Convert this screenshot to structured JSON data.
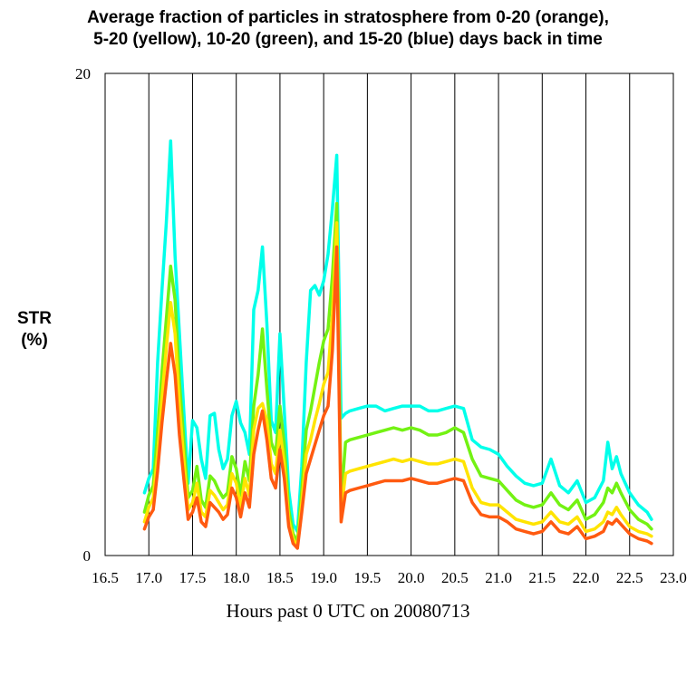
{
  "chart_data": {
    "type": "line",
    "title_lines": [
      "Average fraction of particles in stratosphere from 0-20 (orange),",
      "5-20 (yellow), 10-20 (green), and 15-20 (blue) days back in time"
    ],
    "xlabel": "Hours past 0 UTC on 20080713",
    "ylabel_lines": [
      "STR",
      "(%)"
    ],
    "xlim": [
      16.5,
      23.0
    ],
    "ylim": [
      0,
      20
    ],
    "xticks": [
      "16.5",
      "17.0",
      "17.5",
      "18.0",
      "18.5",
      "19.0",
      "19.5",
      "20.0",
      "20.5",
      "21.0",
      "21.5",
      "22.0",
      "22.5",
      "23.0"
    ],
    "yticks": [
      "0",
      "20"
    ],
    "grid": "vertical",
    "x": [
      16.95,
      17.0,
      17.05,
      17.1,
      17.15,
      17.2,
      17.25,
      17.3,
      17.35,
      17.4,
      17.45,
      17.5,
      17.55,
      17.6,
      17.65,
      17.7,
      17.75,
      17.8,
      17.85,
      17.9,
      17.95,
      18.0,
      18.05,
      18.1,
      18.15,
      18.2,
      18.25,
      18.3,
      18.35,
      18.4,
      18.45,
      18.5,
      18.55,
      18.6,
      18.65,
      18.7,
      18.75,
      18.8,
      18.85,
      18.9,
      18.95,
      19.0,
      19.05,
      19.1,
      19.15,
      19.2,
      19.25,
      19.3,
      19.4,
      19.5,
      19.6,
      19.7,
      19.8,
      19.9,
      20.0,
      20.1,
      20.2,
      20.3,
      20.4,
      20.5,
      20.6,
      20.7,
      20.8,
      20.9,
      21.0,
      21.1,
      21.2,
      21.3,
      21.4,
      21.5,
      21.6,
      21.7,
      21.8,
      21.9,
      22.0,
      22.1,
      22.2,
      22.25,
      22.3,
      22.35,
      22.4,
      22.5,
      22.6,
      22.7,
      22.75
    ],
    "series": [
      {
        "color": "#ff5a10",
        "values": [
          1.1,
          1.6,
          1.9,
          3.5,
          5.5,
          7.2,
          8.8,
          7.5,
          5.0,
          3.2,
          1.5,
          1.8,
          2.4,
          1.4,
          1.2,
          2.2,
          2.0,
          1.8,
          1.5,
          1.7,
          2.8,
          2.4,
          1.6,
          2.6,
          2.0,
          4.2,
          5.2,
          6.0,
          4.8,
          3.2,
          2.8,
          4.4,
          3.2,
          1.2,
          0.5,
          0.3,
          1.8,
          3.4,
          4.0,
          4.6,
          5.2,
          5.8,
          6.2,
          8.5,
          12.8,
          1.4,
          2.6,
          2.7,
          2.8,
          2.9,
          3.0,
          3.1,
          3.1,
          3.1,
          3.2,
          3.1,
          3.0,
          3.0,
          3.1,
          3.2,
          3.1,
          2.2,
          1.7,
          1.6,
          1.6,
          1.4,
          1.1,
          1.0,
          0.9,
          1.0,
          1.4,
          1.0,
          0.9,
          1.2,
          0.7,
          0.8,
          1.0,
          1.4,
          1.3,
          1.5,
          1.3,
          0.9,
          0.7,
          0.6,
          0.5
        ]
      },
      {
        "color": "#ffe400",
        "values": [
          1.4,
          2.0,
          2.4,
          4.2,
          6.5,
          8.6,
          10.5,
          9.2,
          6.2,
          4.0,
          1.9,
          2.2,
          3.0,
          1.8,
          1.6,
          2.7,
          2.5,
          2.2,
          1.9,
          2.1,
          3.4,
          3.0,
          2.0,
          3.2,
          2.5,
          5.2,
          6.1,
          6.3,
          5.6,
          3.8,
          3.4,
          5.2,
          3.8,
          1.5,
          0.7,
          0.4,
          2.2,
          4.2,
          4.8,
          5.6,
          6.3,
          7.1,
          7.6,
          10.0,
          13.8,
          1.8,
          3.4,
          3.5,
          3.6,
          3.7,
          3.8,
          3.9,
          4.0,
          3.9,
          4.0,
          3.9,
          3.8,
          3.8,
          3.9,
          4.0,
          3.9,
          2.8,
          2.2,
          2.1,
          2.1,
          1.8,
          1.5,
          1.4,
          1.3,
          1.4,
          1.8,
          1.4,
          1.3,
          1.6,
          1.0,
          1.1,
          1.4,
          1.8,
          1.7,
          2.0,
          1.7,
          1.2,
          1.0,
          0.9,
          0.8
        ]
      },
      {
        "color": "#73f213",
        "values": [
          1.8,
          2.5,
          2.9,
          5.1,
          7.6,
          9.8,
          12.0,
          10.6,
          7.2,
          4.8,
          2.4,
          2.7,
          3.7,
          2.3,
          2.0,
          3.3,
          3.1,
          2.7,
          2.4,
          2.6,
          4.1,
          3.6,
          2.5,
          3.9,
          3.1,
          6.2,
          7.5,
          9.4,
          6.9,
          4.7,
          4.2,
          6.2,
          4.6,
          1.9,
          0.9,
          0.6,
          2.7,
          5.2,
          6.0,
          7.0,
          8.0,
          8.9,
          9.4,
          11.6,
          14.6,
          2.3,
          4.7,
          4.8,
          4.9,
          5.0,
          5.1,
          5.2,
          5.3,
          5.2,
          5.3,
          5.2,
          5.0,
          5.0,
          5.1,
          5.3,
          5.1,
          4.0,
          3.3,
          3.2,
          3.1,
          2.7,
          2.3,
          2.1,
          2.0,
          2.1,
          2.6,
          2.1,
          1.9,
          2.3,
          1.5,
          1.7,
          2.2,
          2.8,
          2.6,
          3.0,
          2.6,
          1.9,
          1.5,
          1.3,
          1.1
        ]
      },
      {
        "color": "#00ffea",
        "values": [
          2.6,
          3.2,
          3.6,
          8.0,
          11.0,
          13.8,
          17.2,
          12.4,
          9.2,
          6.0,
          3.0,
          5.6,
          5.3,
          4.0,
          3.2,
          5.8,
          5.9,
          4.4,
          3.6,
          4.0,
          5.8,
          6.4,
          5.5,
          5.1,
          4.2,
          10.2,
          11.0,
          12.8,
          9.6,
          5.6,
          5.1,
          9.2,
          6.0,
          2.7,
          1.3,
          1.0,
          3.7,
          8.0,
          11.0,
          11.2,
          10.8,
          11.4,
          12.5,
          14.4,
          16.6,
          5.7,
          5.9,
          6.0,
          6.1,
          6.2,
          6.2,
          6.0,
          6.1,
          6.2,
          6.2,
          6.2,
          6.0,
          6.0,
          6.1,
          6.2,
          6.1,
          4.8,
          4.5,
          4.4,
          4.2,
          3.7,
          3.3,
          3.0,
          2.9,
          3.0,
          4.0,
          2.9,
          2.6,
          3.1,
          2.2,
          2.4,
          3.1,
          4.7,
          3.6,
          4.1,
          3.4,
          2.6,
          2.1,
          1.8,
          1.5
        ]
      }
    ]
  }
}
